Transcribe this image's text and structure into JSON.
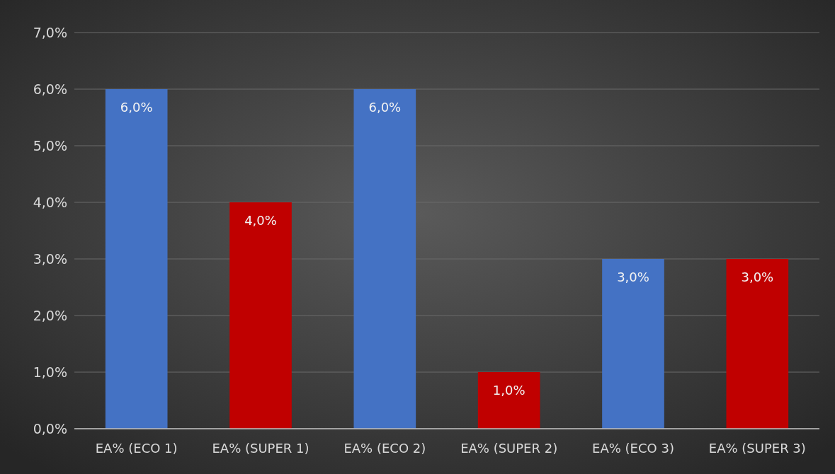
{
  "chart_data": {
    "type": "bar",
    "categories": [
      "EA% (ECO 1)",
      "EA% (SUPER 1)",
      "EA% (ECO 2)",
      "EA% (SUPER 2)",
      "EA% (ECO 3)",
      "EA% (SUPER 3)"
    ],
    "values": [
      6,
      4,
      6,
      1,
      3,
      3
    ],
    "colors": [
      "#4472c4",
      "#c00000",
      "#4472c4",
      "#c00000",
      "#4472c4",
      "#c00000"
    ],
    "value_labels": [
      "6,0%",
      "4,0%",
      "6,0%",
      "1,0%",
      "3,0%",
      "3,0%"
    ],
    "ylim": [
      0,
      7
    ],
    "yticks": [
      {
        "value": 0,
        "label": "0,0%"
      },
      {
        "value": 1,
        "label": "1,0%"
      },
      {
        "value": 2,
        "label": "2,0%"
      },
      {
        "value": 3,
        "label": "3,0%"
      },
      {
        "value": 4,
        "label": "4,0%"
      },
      {
        "value": 5,
        "label": "5,0%"
      },
      {
        "value": 6,
        "label": "6,0%"
      },
      {
        "value": 7,
        "label": "7,0%"
      }
    ],
    "grid": "y"
  }
}
